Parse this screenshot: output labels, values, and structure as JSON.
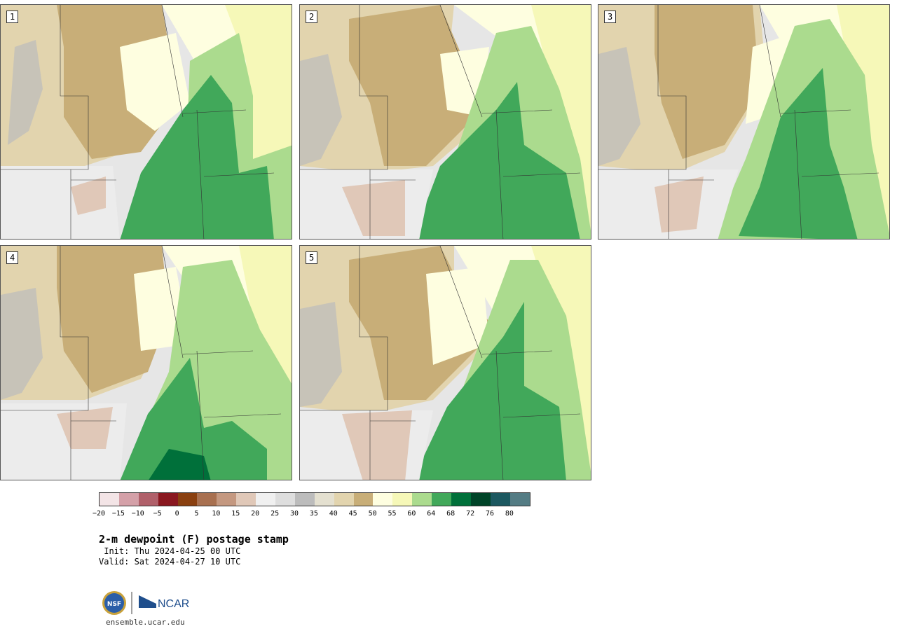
{
  "panels": [
    {
      "label": "1"
    },
    {
      "label": "2"
    },
    {
      "label": "3"
    },
    {
      "label": "4"
    },
    {
      "label": "5"
    }
  ],
  "colorbar": {
    "colors": [
      "#f3e4e6",
      "#d4a0a8",
      "#b0606a",
      "#8a1820",
      "#8a4010",
      "#a87050",
      "#c49880",
      "#e0c8b8",
      "#f0f0f0",
      "#dedede",
      "#bcbcbc",
      "#e4e0d0",
      "#e2d4ae",
      "#c8ae78",
      "#fefee0",
      "#f6f8b8",
      "#abdb8e",
      "#41a85a",
      "#00703a",
      "#004428",
      "#1c5860",
      "#547c84"
    ],
    "ticks": [
      "−20",
      "−15",
      "−10",
      "−5",
      "0",
      "5",
      "10",
      "15",
      "20",
      "25",
      "30",
      "35",
      "40",
      "45",
      "50",
      "55",
      "60",
      "64",
      "68",
      "72",
      "76",
      "80"
    ]
  },
  "title": "2-m dewpoint (F) postage stamp",
  "init": " Init: Thu 2024-04-25 00 UTC",
  "valid": "Valid: Sat 2024-04-27 10 UTC",
  "logo": {
    "nsf": "NSF",
    "ncar": "NCAR"
  },
  "site": "ensemble.ucar.edu"
}
